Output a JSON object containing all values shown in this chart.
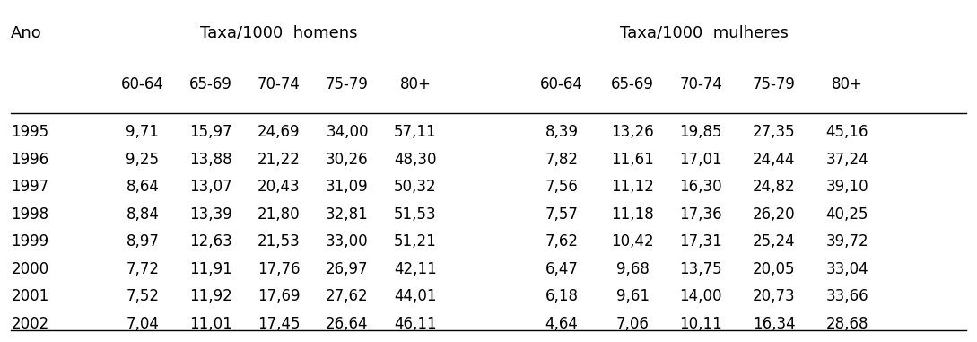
{
  "title_homens": "Taxa/1000  homens",
  "title_mulheres": "Taxa/1000  mulheres",
  "col_ano": "Ano",
  "age_groups": [
    "60-64",
    "65-69",
    "70-74",
    "75-79",
    "80+"
  ],
  "years": [
    "1995",
    "1996",
    "1997",
    "1998",
    "1999",
    "2000",
    "2001",
    "2002"
  ],
  "homens": [
    [
      9.71,
      15.97,
      24.69,
      34.0,
      57.11
    ],
    [
      9.25,
      13.88,
      21.22,
      30.26,
      48.3
    ],
    [
      8.64,
      13.07,
      20.43,
      31.09,
      50.32
    ],
    [
      8.84,
      13.39,
      21.8,
      32.81,
      51.53
    ],
    [
      8.97,
      12.63,
      21.53,
      33.0,
      51.21
    ],
    [
      7.72,
      11.91,
      17.76,
      26.97,
      42.11
    ],
    [
      7.52,
      11.92,
      17.69,
      27.62,
      44.01
    ],
    [
      7.04,
      11.01,
      17.45,
      26.64,
      46.11
    ]
  ],
  "mulheres": [
    [
      8.39,
      13.26,
      19.85,
      27.35,
      45.16
    ],
    [
      7.82,
      11.61,
      17.01,
      24.44,
      37.24
    ],
    [
      7.56,
      11.12,
      16.3,
      24.82,
      39.1
    ],
    [
      7.57,
      11.18,
      17.36,
      26.2,
      40.25
    ],
    [
      7.62,
      10.42,
      17.31,
      25.24,
      39.72
    ],
    [
      6.47,
      9.68,
      13.75,
      20.05,
      33.04
    ],
    [
      6.18,
      9.61,
      14.0,
      20.73,
      33.66
    ],
    [
      4.64,
      7.06,
      10.11,
      16.34,
      28.68
    ]
  ],
  "bg_color": "#ffffff",
  "text_color": "#000000",
  "font_size_header1": 13,
  "font_size_header2": 12,
  "font_size_data": 12
}
